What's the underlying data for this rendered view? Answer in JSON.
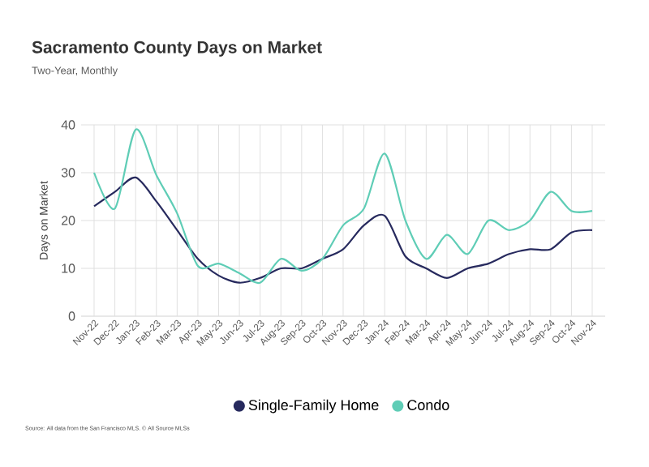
{
  "chart_data": {
    "type": "line",
    "title": "Sacramento County Days on Market",
    "subtitle": "Two-Year, Monthly",
    "ylabel": "Days on Market",
    "categories": [
      "Nov-22",
      "Dec-22",
      "Jan-23",
      "Feb-23",
      "Mar-23",
      "Apr-23",
      "May-23",
      "Jun-23",
      "Jul-23",
      "Aug-23",
      "Sep-23",
      "Oct-23",
      "Nov-23",
      "Dec-23",
      "Jan-24",
      "Feb-24",
      "Mar-24",
      "Apr-24",
      "May-24",
      "Jun-24",
      "Jul-24",
      "Aug-24",
      "Sep-24",
      "Oct-24",
      "Nov-24"
    ],
    "series": [
      {
        "name": "Single-Family Home",
        "color": "#272a5e",
        "values": [
          23,
          26,
          29,
          24,
          18,
          12,
          8.5,
          7,
          8,
          10,
          10,
          12,
          14,
          19,
          21,
          12.5,
          10,
          8,
          10,
          11,
          13,
          14,
          14,
          17.5,
          18
        ]
      },
      {
        "name": "Condo",
        "color": "#5fcdb6",
        "values": [
          30,
          22.5,
          39,
          29.5,
          21.5,
          10.5,
          11,
          9,
          7,
          12,
          9.5,
          12,
          19,
          22.5,
          34,
          20,
          12,
          17,
          13,
          20,
          18,
          20,
          26,
          22,
          22
        ]
      }
    ],
    "ylim": [
      0,
      40
    ],
    "yticks": [
      0,
      10,
      20,
      30,
      40
    ],
    "grid": true,
    "legend": "bottom",
    "marker": "none",
    "line_style": "solid",
    "annotations": [
      "Source: All data from the San Francisco MLS. © All Source MLSs"
    ]
  }
}
